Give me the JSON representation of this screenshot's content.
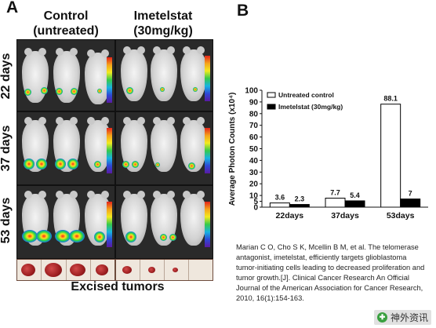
{
  "panel_a": {
    "letter": "A",
    "group_titles": [
      {
        "line1": "Control",
        "line2": "(untreated)"
      },
      {
        "line1": "Imetelstat",
        "line2": "(30mg/kg)"
      }
    ],
    "timepoints": [
      "22 days",
      "37 days",
      "53 days"
    ],
    "caption": "Excised tumors"
  },
  "panel_b": {
    "letter": "B"
  },
  "chart_data": {
    "type": "bar",
    "categories": [
      "22days",
      "37days",
      "53days"
    ],
    "series": [
      {
        "name": "Untreated control",
        "values": [
          3.6,
          7.7,
          88.1
        ],
        "labels": [
          "3.6",
          "7.7",
          "88.1"
        ],
        "fill": "#ffffff"
      },
      {
        "name": "Imetelstat (30mg/kg)",
        "values": [
          2.3,
          5.4,
          7
        ],
        "labels": [
          "2.3",
          "5.4",
          "7"
        ],
        "fill": "#000000"
      }
    ],
    "ylabel": "Average Photon Counts (x10⁴)",
    "ylim": [
      0,
      100
    ],
    "yticks": [
      0,
      5,
      10,
      20,
      30,
      40,
      50,
      60,
      70,
      80,
      90,
      100
    ],
    "legend_position": "top-left",
    "grid": false
  },
  "reference": {
    "lines": [
      "Marian C O, Cho S K, Mcellin B M, et al. The telomerase",
      "antagonist, imetelstat, efficiently targets glioblastoma",
      "tumor-initiating cells leading to decreased proliferation and",
      "tumor growth.[J]. Clinical Cancer Research An Official",
      "Journal of the American Association for Cancer Research,",
      "2010, 16(1):154-163."
    ]
  },
  "watermark": {
    "icon_glyph": "✚",
    "text": "神外资讯"
  }
}
